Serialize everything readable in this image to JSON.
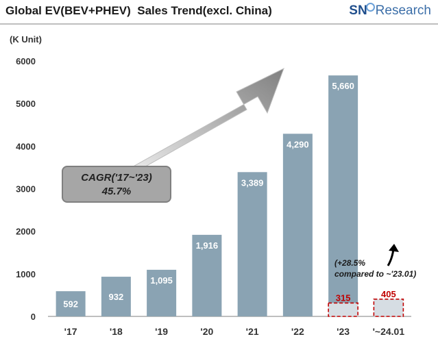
{
  "title": "Global EV(BEV+PHEV)  Sales Trend(excl. China)",
  "logo": {
    "sne": "SN",
    "rest": "Research"
  },
  "unit_label": "(K Unit)",
  "cagr": {
    "line1": "CAGR('17~'23)",
    "line2": "45.7%"
  },
  "note": {
    "line1": "(+28.5%",
    "line2": "compared to ~'23.01)"
  },
  "colors": {
    "bar": "#8aa3b3",
    "partial_bar": "#d6dde3",
    "dashed": "#c00000",
    "partial_label": "#c00000",
    "arrow": "#8c8c8c"
  },
  "chart_data": {
    "type": "bar",
    "ylabel": "(K Unit)",
    "ylim": [
      0,
      6000
    ],
    "yticks": [
      0,
      1000,
      2000,
      3000,
      4000,
      5000,
      6000
    ],
    "grid": false,
    "categories": [
      "'17",
      "'18",
      "'19",
      "'20",
      "'21",
      "'22",
      "'23",
      "'~24.01"
    ],
    "values": [
      592,
      932,
      1095,
      1916,
      3389,
      4290,
      5660,
      null
    ],
    "value_labels": [
      "592",
      "932",
      "1,095",
      "1,916",
      "3,389",
      "4,290",
      "5,660",
      ""
    ],
    "partial_series": {
      "categories": [
        "'23",
        "'~24.01"
      ],
      "values": [
        315,
        405
      ],
      "labels": [
        "315",
        "405"
      ]
    }
  }
}
